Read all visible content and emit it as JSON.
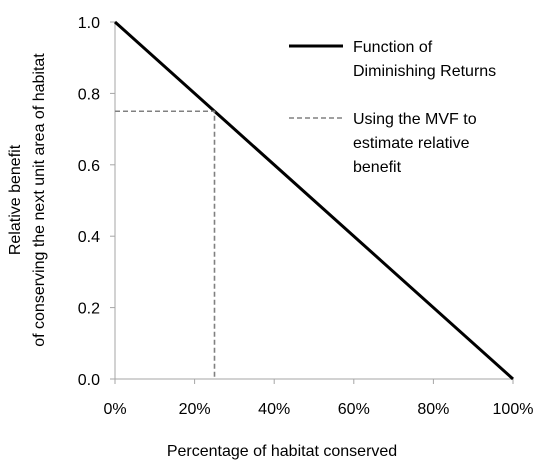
{
  "chart_data": {
    "type": "line",
    "title": "",
    "xlabel": "Percentage of habitat conserved",
    "ylabel_lines": [
      "Relative benefit",
      "of conserving the next unit area of habitat"
    ],
    "xlim": [
      0,
      100
    ],
    "ylim": [
      0,
      1
    ],
    "x_ticks": [
      "0%",
      "20%",
      "40%",
      "60%",
      "80%",
      "100%"
    ],
    "x_tick_values": [
      0,
      20,
      40,
      60,
      80,
      100
    ],
    "y_ticks": [
      "0.0",
      "0.2",
      "0.4",
      "0.6",
      "0.8",
      "1.0"
    ],
    "y_tick_values": [
      0,
      0.2,
      0.4,
      0.6,
      0.8,
      1.0
    ],
    "grid": false,
    "legend_position": "right",
    "series": [
      {
        "name": "Function of Diminishing Returns",
        "label_lines": [
          "Function of",
          "Diminishing Returns"
        ],
        "style": "solid",
        "color": "#000000",
        "x": [
          0,
          100
        ],
        "y": [
          1.0,
          0.0
        ]
      },
      {
        "name": "Using the MVF to estimate relative benefit",
        "label_lines": [
          "Using the MVF to",
          "estimate relative",
          "benefit"
        ],
        "style": "dashed",
        "color": "#808080",
        "x": [
          0,
          25,
          25
        ],
        "y": [
          0.75,
          0.75,
          0.0
        ]
      }
    ]
  }
}
